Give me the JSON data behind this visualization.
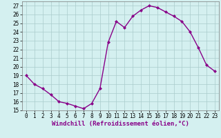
{
  "x": [
    0,
    1,
    2,
    3,
    4,
    5,
    6,
    7,
    8,
    9,
    10,
    11,
    12,
    13,
    14,
    15,
    16,
    17,
    18,
    19,
    20,
    21,
    22,
    23
  ],
  "y": [
    19.0,
    18.0,
    17.5,
    16.8,
    16.0,
    15.8,
    15.5,
    15.2,
    15.8,
    17.5,
    22.8,
    25.2,
    24.5,
    25.8,
    26.5,
    27.0,
    26.8,
    26.3,
    25.8,
    25.2,
    24.0,
    22.2,
    20.2,
    19.5
  ],
  "line_color": "#880088",
  "marker": "D",
  "marker_size": 2.0,
  "bg_color": "#d4f0f0",
  "grid_color": "#aacccc",
  "xlabel": "Windchill (Refroidissement éolien,°C)",
  "xlim": [
    -0.5,
    23.5
  ],
  "ylim": [
    15,
    27.5
  ],
  "yticks": [
    15,
    16,
    17,
    18,
    19,
    20,
    21,
    22,
    23,
    24,
    25,
    26,
    27
  ],
  "xticks": [
    0,
    1,
    2,
    3,
    4,
    5,
    6,
    7,
    8,
    9,
    10,
    11,
    12,
    13,
    14,
    15,
    16,
    17,
    18,
    19,
    20,
    21,
    22,
    23
  ],
  "xlabel_fontsize": 6.5,
  "tick_fontsize": 5.5,
  "line_width": 1.0
}
